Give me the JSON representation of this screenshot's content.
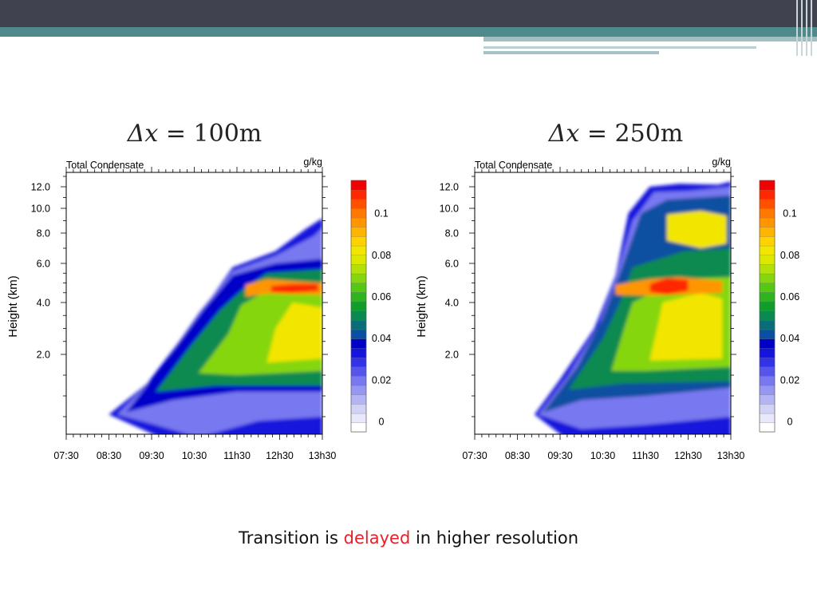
{
  "slide": {
    "caption_before": "Transition is ",
    "caption_highlight": "delayed",
    "caption_after": " in higher resolution",
    "highlight_color": "#e8202a",
    "header_color": "#41424f",
    "accent_color": "#4e8a8c"
  },
  "panels": [
    {
      "title_lhs": "Δx",
      "title_rhs": " = 100m"
    },
    {
      "title_lhs": "Δx",
      "title_rhs": " = 250m"
    }
  ],
  "chart_data": [
    {
      "type": "heatmap",
      "title": "Total Condensate",
      "units": "g/kg",
      "xlabel": "",
      "ylabel": "Height (km)",
      "x_ticks": [
        "07:30",
        "08:30",
        "09:30",
        "10:30",
        "11h30",
        "12h30",
        "13h30"
      ],
      "y_ticks": [
        2.0,
        4.0,
        6.0,
        8.0,
        10.0,
        12.0
      ],
      "y_scale": "stretched (non-linear)",
      "colorbar": {
        "ticks": [
          0,
          0.02,
          0.04,
          0.06,
          0.08,
          0.1
        ],
        "colors": [
          "#ffffff",
          "#e8e8fa",
          "#d2d2f7",
          "#b4b4f5",
          "#9696f3",
          "#7878f0",
          "#5555ec",
          "#3232e6",
          "#1414dc",
          "#0000c8",
          "#0a4fa0",
          "#0a6e78",
          "#0a8a50",
          "#109e2a",
          "#2db41e",
          "#55c814",
          "#86d60f",
          "#b4e00a",
          "#dde800",
          "#f2e600",
          "#ffd200",
          "#ffb400",
          "#ff9600",
          "#ff7800",
          "#ff5000",
          "#ff2800",
          "#f00000"
        ]
      },
      "features": [
        {
          "name": "cloud onset",
          "x": "08:30",
          "height_km": 0.6
        },
        {
          "name": "cloud top at end",
          "x": "13h30",
          "height_km": 8.5
        },
        {
          "name": "max condensate layer",
          "x_range": [
            "11h30",
            "13h30"
          ],
          "height_km": 4.7,
          "value": 0.11
        }
      ]
    },
    {
      "type": "heatmap",
      "title": "Total Condensate",
      "units": "g/kg",
      "xlabel": "",
      "ylabel": "Height (km)",
      "x_ticks": [
        "07:30",
        "08:30",
        "09:30",
        "10:30",
        "11h30",
        "12h30",
        "13h30"
      ],
      "y_ticks": [
        2.0,
        4.0,
        6.0,
        8.0,
        10.0,
        12.0
      ],
      "y_scale": "stretched (non-linear)",
      "colorbar": {
        "ticks": [
          0,
          0.02,
          0.04,
          0.06,
          0.08,
          0.1
        ],
        "colors": [
          "#ffffff",
          "#e8e8fa",
          "#d2d2f7",
          "#b4b4f5",
          "#9696f3",
          "#7878f0",
          "#5555ec",
          "#3232e6",
          "#1414dc",
          "#0000c8",
          "#0a4fa0",
          "#0a6e78",
          "#0a8a50",
          "#109e2a",
          "#2db41e",
          "#55c814",
          "#86d60f",
          "#b4e00a",
          "#dde800",
          "#f2e600",
          "#ffd200",
          "#ffb400",
          "#ff9600",
          "#ff7800",
          "#ff5000",
          "#ff2800",
          "#f00000"
        ]
      },
      "features": [
        {
          "name": "cloud onset",
          "x": "09:00",
          "height_km": 0.6
        },
        {
          "name": "cloud top at end",
          "x": "13h30",
          "height_km": 12.5
        },
        {
          "name": "max condensate layer",
          "x_range": [
            "11h00",
            "12h30"
          ],
          "height_km": 4.8,
          "value": 0.11
        }
      ]
    }
  ]
}
